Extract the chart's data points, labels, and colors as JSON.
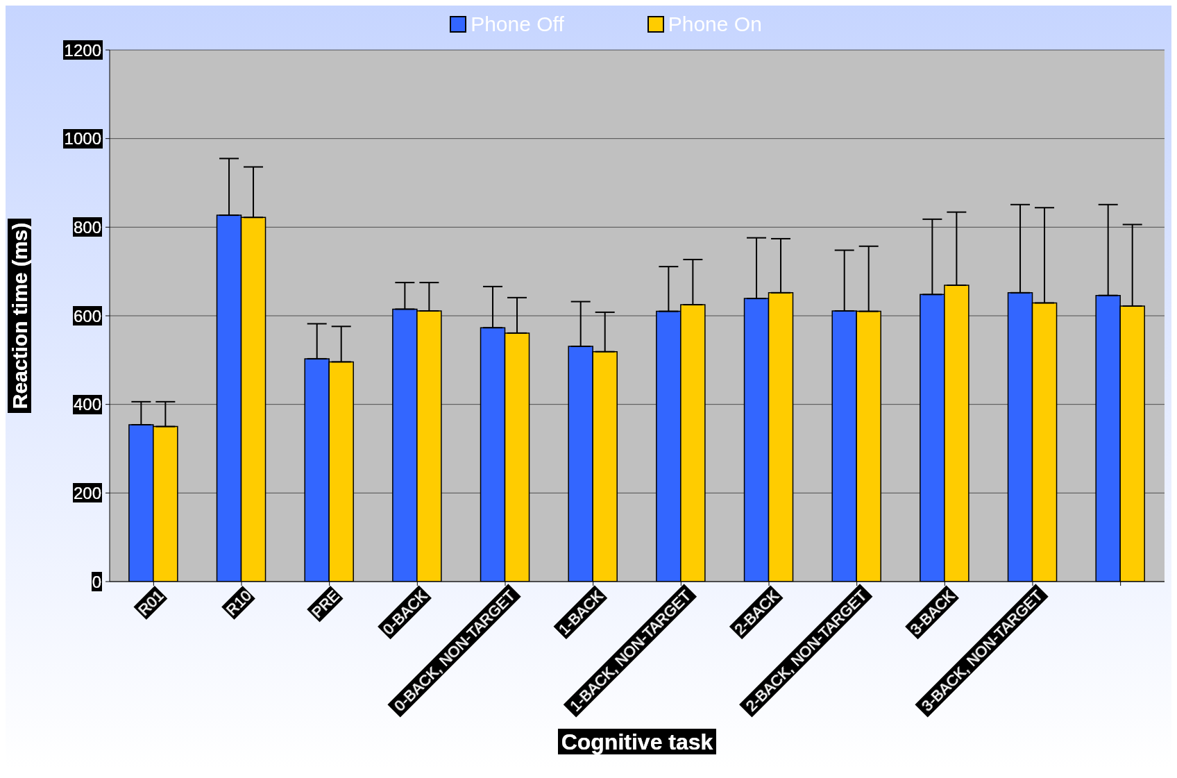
{
  "chart_data": {
    "type": "bar",
    "xlabel": "Cognitive task",
    "ylabel": "Reaction time (ms)",
    "categories": [
      "R01",
      "R10",
      "PRE",
      "0-BACK",
      "0-BACK, NON-TARGET",
      "1-BACK",
      "1-BACK, NON-TARGET",
      "2-BACK",
      "2-BACK, NON-TARGET",
      "3-BACK",
      "3-BACK, NON-TARGET",
      null
    ],
    "series": [
      {
        "name": "Phone Off",
        "color": "#3366ff",
        "values": [
          354,
          827,
          503,
          615,
          573,
          531,
          610,
          639,
          611,
          648,
          652,
          646
        ],
        "errors": [
          [
            354,
            406
          ],
          [
            827,
            955
          ],
          [
            503,
            582
          ],
          [
            615,
            675
          ],
          [
            573,
            666
          ],
          [
            531,
            632
          ],
          [
            610,
            711
          ],
          [
            639,
            776
          ],
          [
            611,
            748
          ],
          [
            648,
            818
          ],
          [
            652,
            851
          ],
          [
            646,
            851
          ]
        ]
      },
      {
        "name": "Phone On",
        "color": "#ffcc00",
        "values": [
          350,
          822,
          496,
          611,
          561,
          519,
          625,
          652,
          610,
          669,
          629,
          622
        ],
        "errors": [
          [
            350,
            406
          ],
          [
            822,
            936
          ],
          [
            496,
            576
          ],
          [
            611,
            675
          ],
          [
            561,
            641
          ],
          [
            519,
            608
          ],
          [
            625,
            727
          ],
          [
            652,
            774
          ],
          [
            610,
            757
          ],
          [
            669,
            834
          ],
          [
            629,
            844
          ],
          [
            622,
            806
          ]
        ]
      }
    ],
    "ylim": [
      0,
      1200
    ],
    "yticks": [
      0,
      200,
      400,
      600,
      800,
      1000,
      1200
    ],
    "grid": "y",
    "legend": "top"
  }
}
